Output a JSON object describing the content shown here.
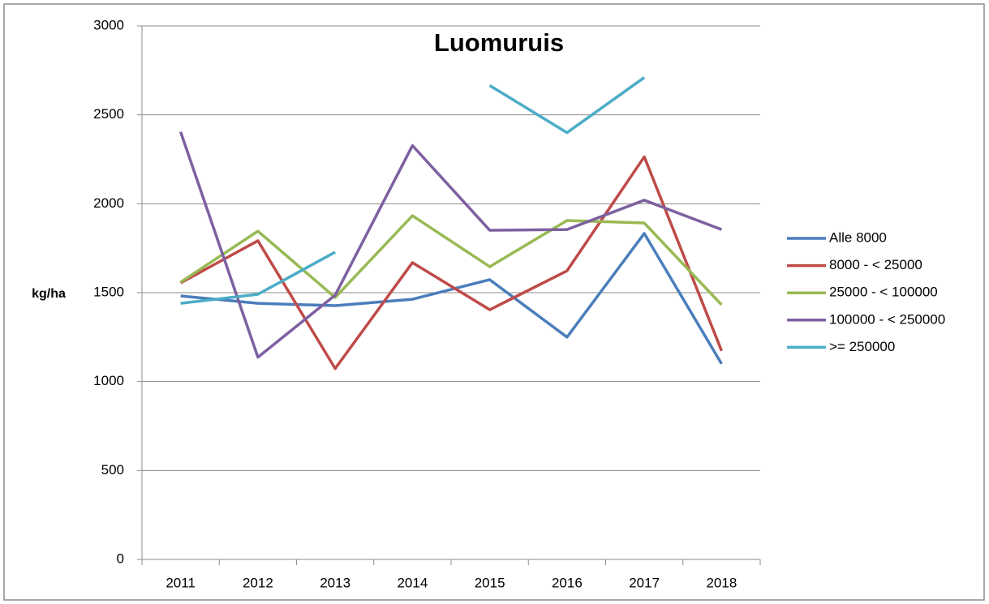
{
  "chart_data": {
    "type": "line",
    "title": "Luomuruis",
    "y_label": "kg/ha",
    "categories": [
      "2011",
      "2012",
      "2013",
      "2014",
      "2015",
      "2016",
      "2017",
      "2018"
    ],
    "series": [
      {
        "name": "Alle 8000",
        "color": "#4a7ebb",
        "values": [
          1482,
          1440,
          1427,
          1463,
          1573,
          1250,
          1833,
          1100
        ]
      },
      {
        "name": "8000 - < 25000",
        "color": "#be4b48",
        "values": [
          1555,
          1792,
          1073,
          1669,
          1404,
          1623,
          2264,
          1173
        ]
      },
      {
        "name": "25000 - < 100000",
        "color": "#98b954",
        "values": [
          1559,
          1846,
          1473,
          1933,
          1646,
          1906,
          1892,
          1432
        ]
      },
      {
        "name": "100000 - < 250000",
        "color": "#7d60a0",
        "values": [
          2404,
          1137,
          1486,
          2327,
          1851,
          1855,
          2020,
          1855
        ]
      },
      {
        "name": ">= 250000",
        "color": "#4bacc6",
        "values": [
          1440,
          1491,
          1728,
          null,
          2665,
          2400,
          2710,
          null
        ]
      }
    ],
    "ylim": [
      0,
      3000
    ],
    "yticks": [
      0,
      500,
      1000,
      1500,
      2000,
      2500,
      3000
    ],
    "grid": true,
    "legend": "right"
  }
}
